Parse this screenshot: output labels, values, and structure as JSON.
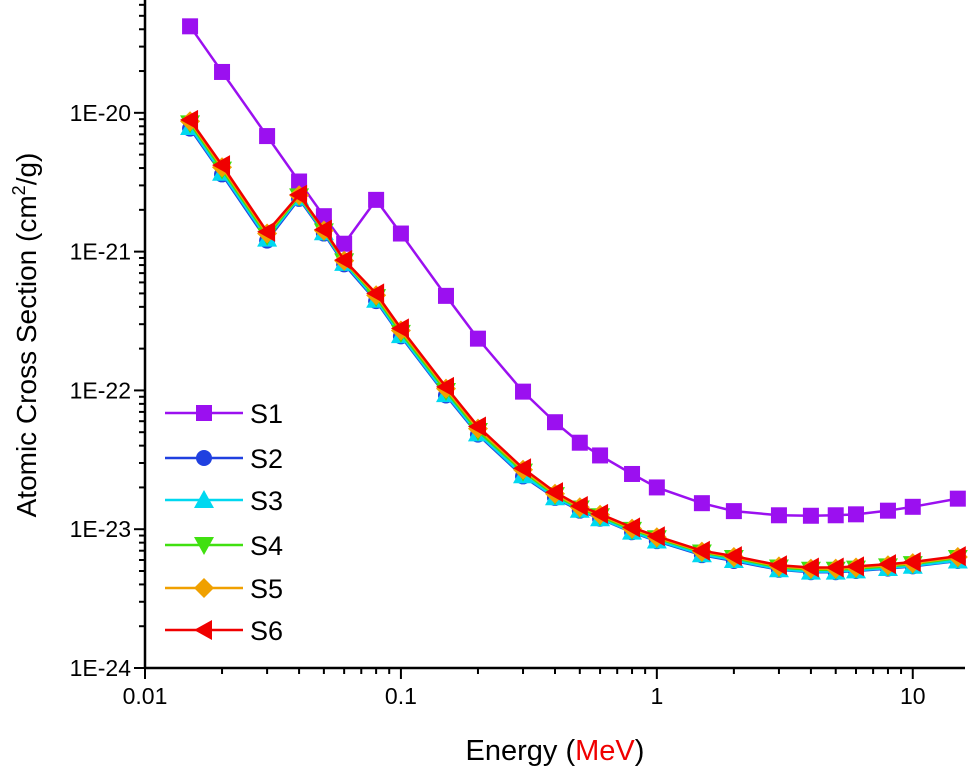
{
  "chart_data": {
    "type": "line",
    "title": "",
    "xlabel_prefix": "Energy (",
    "xlabel_unit": "MeV",
    "xlabel_suffix": ")",
    "ylabel": "Atomic Cross Section (cm",
    "ylabel_sup": "2",
    "ylabel_end": "/g)",
    "xscale": "log",
    "yscale": "log",
    "xlim": [
      0.01,
      16
    ],
    "ylim": [
      1e-24,
      6.5e-20
    ],
    "xticks": [
      0.01,
      0.1,
      1,
      10
    ],
    "xtick_labels": [
      "0.01",
      "0.1",
      "1",
      "10"
    ],
    "yticks": [
      1e-24,
      1e-23,
      1e-22,
      1e-21,
      1e-20
    ],
    "ytick_labels": [
      "1E-24",
      "1E-23",
      "1E-22",
      "1E-21",
      "1E-20"
    ],
    "grid": false,
    "legend_position": "bottom-left",
    "x": [
      0.015,
      0.02,
      0.03,
      0.04,
      0.05,
      0.06,
      0.08,
      0.1,
      0.15,
      0.2,
      0.3,
      0.4,
      0.5,
      0.6,
      0.8,
      1,
      1.5,
      2,
      3,
      4,
      5,
      6,
      8,
      10,
      15
    ],
    "series": [
      {
        "name": "S1",
        "color": "#9B10F0",
        "marker": "square",
        "values": [
          4.2e-20,
          1.97e-20,
          6.8e-21,
          3.2e-21,
          1.8e-21,
          1.14e-21,
          2.36e-21,
          1.35e-21,
          4.8e-22,
          2.36e-22,
          9.8e-23,
          5.9e-23,
          4.2e-23,
          3.4e-23,
          2.5e-23,
          2e-23,
          1.54e-23,
          1.35e-23,
          1.26e-23,
          1.25e-23,
          1.26e-23,
          1.28e-23,
          1.36e-23,
          1.45e-23,
          1.66e-23
        ]
      },
      {
        "name": "S2",
        "color": "#2040E0",
        "marker": "circle",
        "values": [
          7.7e-21,
          3.6e-21,
          1.2e-21,
          2.4e-21,
          1.35e-21,
          8.1e-22,
          4.4e-22,
          2.45e-22,
          9.2e-23,
          4.8e-23,
          2.4e-23,
          1.68e-23,
          1.36e-23,
          1.19e-23,
          9.5e-24,
          8.2e-24,
          6.5e-24,
          5.9e-24,
          5.1e-24,
          4.9e-24,
          4.9e-24,
          5e-24,
          5.2e-24,
          5.4e-24,
          5.9e-24
        ]
      },
      {
        "name": "S3",
        "color": "#00D8F0",
        "marker": "triangle-up",
        "values": [
          7.9e-21,
          3.7e-21,
          1.24e-21,
          2.45e-21,
          1.38e-21,
          8.3e-22,
          4.5e-22,
          2.5e-22,
          9.4e-23,
          4.9e-23,
          2.45e-23,
          1.7e-23,
          1.38e-23,
          1.2e-23,
          9.6e-24,
          8.3e-24,
          6.6e-24,
          6e-24,
          5.15e-24,
          4.95e-24,
          4.95e-24,
          5.05e-24,
          5.25e-24,
          5.45e-24,
          5.95e-24
        ]
      },
      {
        "name": "S4",
        "color": "#40E010",
        "marker": "triangle-down",
        "values": [
          8.4e-21,
          3.9e-21,
          1.3e-21,
          2.5e-21,
          1.4e-21,
          8.5e-22,
          4.7e-22,
          2.6e-22,
          9.9e-23,
          5.1e-23,
          2.6e-23,
          1.76e-23,
          1.41e-23,
          1.24e-23,
          9.9e-24,
          8.6e-24,
          6.8e-24,
          6.2e-24,
          5.3e-24,
          5.1e-24,
          5.1e-24,
          5.2e-24,
          5.4e-24,
          5.6e-24,
          6.2e-24
        ]
      },
      {
        "name": "S5",
        "color": "#F0A000",
        "marker": "diamond",
        "values": [
          8.7e-21,
          4.05e-21,
          1.35e-21,
          2.55e-21,
          1.42e-21,
          8.6e-22,
          4.85e-22,
          2.7e-22,
          1.03e-22,
          5.3e-23,
          2.68e-23,
          1.8e-23,
          1.44e-23,
          1.27e-23,
          1.01e-23,
          8.75e-24,
          6.9e-24,
          6.3e-24,
          5.4e-24,
          5.2e-24,
          5.2e-24,
          5.3e-24,
          5.5e-24,
          5.7e-24,
          6.3e-24
        ]
      },
      {
        "name": "S6",
        "color": "#F00000",
        "marker": "triangle-left",
        "values": [
          8.9e-21,
          4.2e-21,
          1.39e-21,
          2.57e-21,
          1.44e-21,
          8.7e-22,
          5e-22,
          2.8e-22,
          1.06e-22,
          5.5e-23,
          2.75e-23,
          1.85e-23,
          1.47e-23,
          1.29e-23,
          1.03e-23,
          8.9e-24,
          7e-24,
          6.4e-24,
          5.5e-24,
          5.3e-24,
          5.3e-24,
          5.4e-24,
          5.6e-24,
          5.8e-24,
          6.4e-24
        ]
      }
    ]
  }
}
